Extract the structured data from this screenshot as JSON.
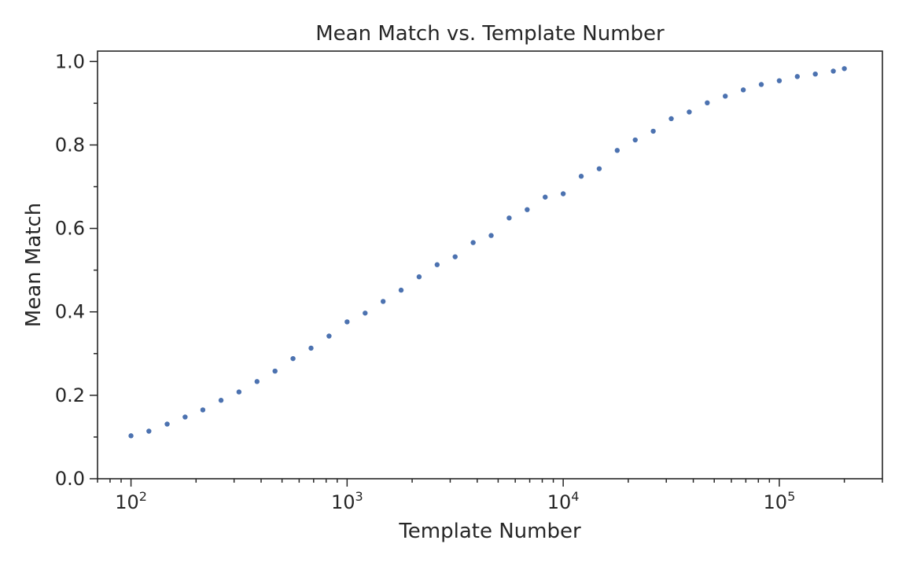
{
  "chart_data": {
    "type": "scatter",
    "title": "Mean Match vs. Template Number",
    "xlabel": "Template Number",
    "ylabel": "Mean Match",
    "xscale": "log",
    "xlim": [
      70,
      300000
    ],
    "ylim": [
      0.0,
      1.025
    ],
    "x_ticks": [
      {
        "base": "10",
        "exp": "2",
        "value": 100
      },
      {
        "base": "10",
        "exp": "3",
        "value": 1000
      },
      {
        "base": "10",
        "exp": "4",
        "value": 10000
      },
      {
        "base": "10",
        "exp": "5",
        "value": 100000
      }
    ],
    "y_ticks": [
      "0.0",
      "0.2",
      "0.4",
      "0.6",
      "0.8",
      "1.0"
    ],
    "grid": false,
    "marker_color": "#4c72b0",
    "series": [
      {
        "x": [
          100,
          121,
          147,
          178,
          215,
          261,
          316,
          383,
          464,
          562,
          681,
          825,
          1000,
          1212,
          1468,
          1778,
          2154,
          2610,
          3162,
          3831,
          4642,
          5623,
          6813,
          8254,
          10000,
          12115,
          14678,
          17783,
          21544,
          26102,
          31623,
          38312,
          46416,
          56234,
          68129,
          82540,
          100000,
          121153,
          146780,
          177828,
          200000
        ],
        "y": [
          0.103,
          0.114,
          0.131,
          0.148,
          0.165,
          0.188,
          0.208,
          0.233,
          0.258,
          0.288,
          0.313,
          0.342,
          0.376,
          0.397,
          0.425,
          0.452,
          0.484,
          0.513,
          0.532,
          0.566,
          0.583,
          0.625,
          0.645,
          0.675,
          0.683,
          0.725,
          0.743,
          0.787,
          0.812,
          0.833,
          0.863,
          0.879,
          0.901,
          0.917,
          0.932,
          0.945,
          0.954,
          0.964,
          0.97,
          0.977,
          0.983
        ]
      }
    ]
  }
}
